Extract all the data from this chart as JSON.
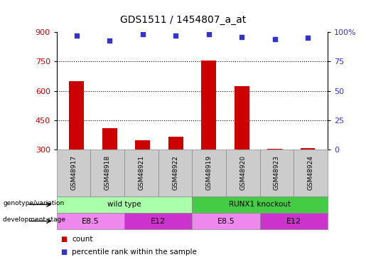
{
  "title": "GDS1511 / 1454807_a_at",
  "samples": [
    "GSM48917",
    "GSM48918",
    "GSM48921",
    "GSM48922",
    "GSM48919",
    "GSM48920",
    "GSM48923",
    "GSM48924"
  ],
  "counts": [
    648,
    410,
    348,
    365,
    755,
    622,
    305,
    308
  ],
  "percentiles": [
    97,
    93,
    98,
    97,
    98,
    96,
    94,
    95
  ],
  "ylim_left": [
    300,
    900
  ],
  "ylim_right": [
    0,
    100
  ],
  "yticks_left": [
    300,
    450,
    600,
    750,
    900
  ],
  "yticks_right": [
    0,
    25,
    50,
    75,
    100
  ],
  "right_tick_labels": [
    "0",
    "25",
    "50",
    "75",
    "100%"
  ],
  "bar_color": "#cc0000",
  "dot_color": "#3333cc",
  "bg_color": "#ffffff",
  "genotype_groups": [
    {
      "label": "wild type",
      "start": 0,
      "end": 4,
      "color": "#aaffaa"
    },
    {
      "label": "RUNX1 knockout",
      "start": 4,
      "end": 8,
      "color": "#44cc44"
    }
  ],
  "stage_groups": [
    {
      "label": "E8.5",
      "start": 0,
      "end": 2,
      "color": "#ee88ee"
    },
    {
      "label": "E12",
      "start": 2,
      "end": 4,
      "color": "#cc33cc"
    },
    {
      "label": "E8.5",
      "start": 4,
      "end": 6,
      "color": "#ee88ee"
    },
    {
      "label": "E12",
      "start": 6,
      "end": 8,
      "color": "#cc33cc"
    }
  ],
  "legend_count_color": "#cc0000",
  "legend_pct_color": "#3333cc"
}
